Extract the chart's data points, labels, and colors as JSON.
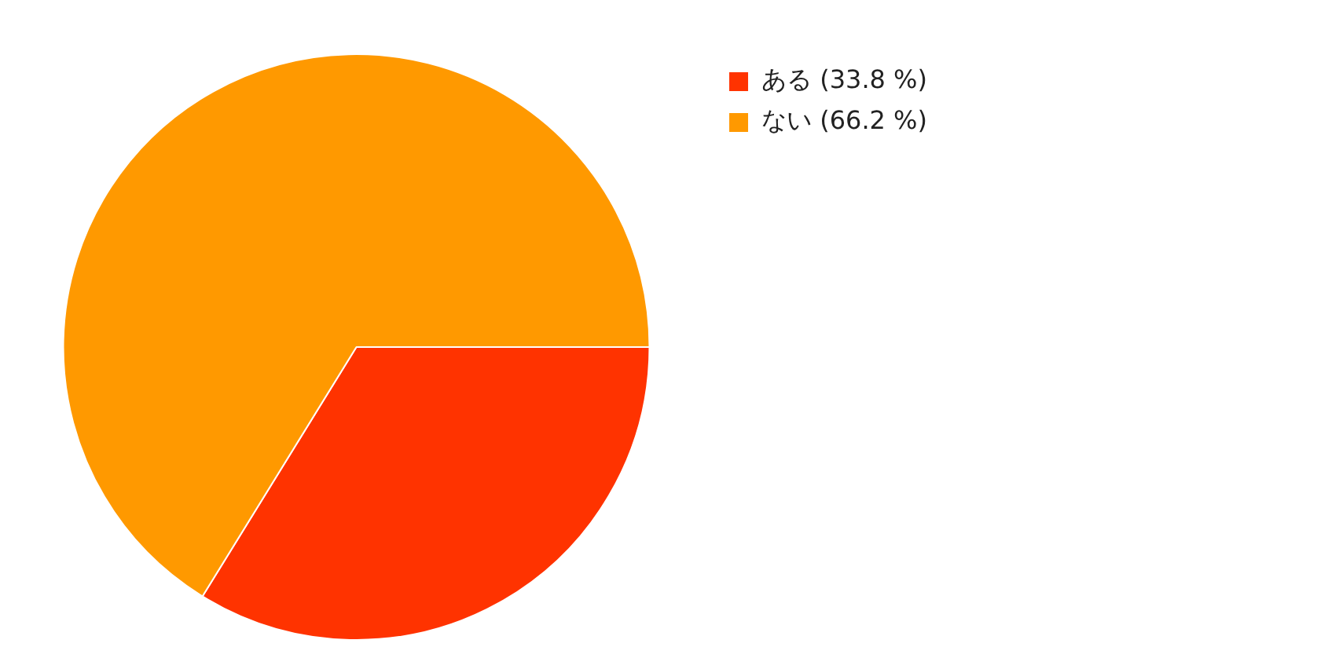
{
  "chart_data": {
    "type": "pie",
    "categories": [
      "ある (33.8 %)",
      "ない (66.2 %)"
    ],
    "values": [
      33.8,
      66.2
    ],
    "colors": [
      "#ff3300",
      "#ff9900"
    ],
    "legend": "top right"
  }
}
